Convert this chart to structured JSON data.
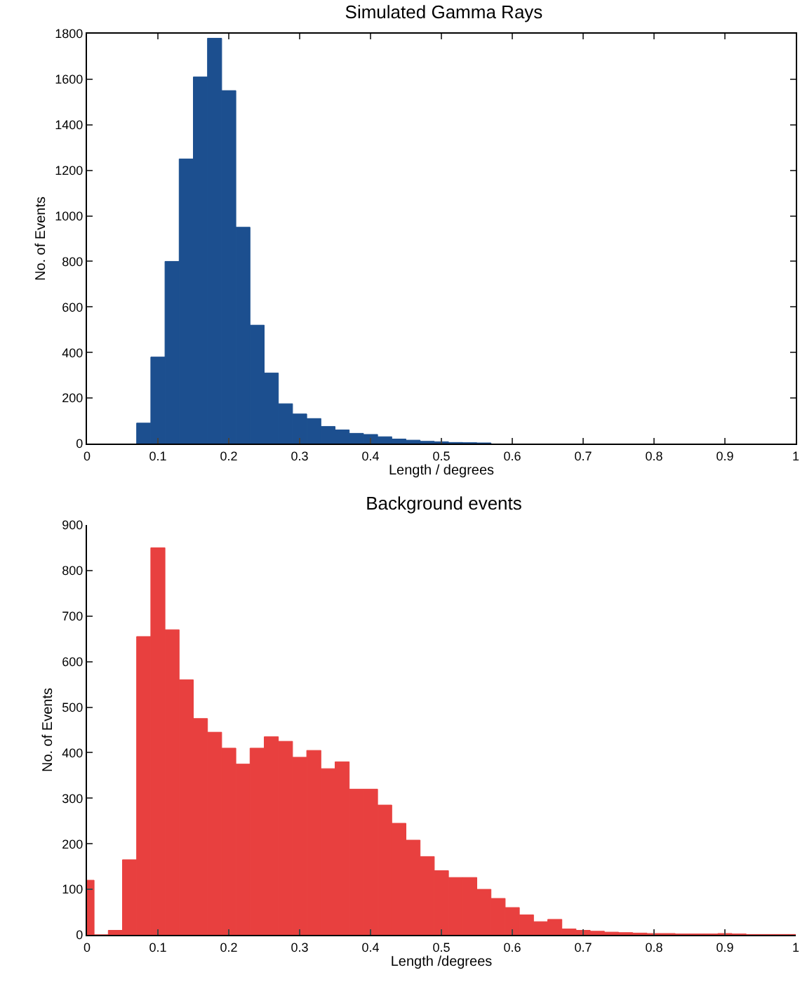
{
  "chart_data": [
    {
      "type": "histogram",
      "title": "Simulated Gamma Rays",
      "xlabel": "Length / degrees",
      "ylabel": "No. of Events",
      "color": "#1c4f8f",
      "bins": [
        0.07,
        0.09,
        0.11,
        0.13,
        0.15,
        0.17,
        0.19,
        0.21,
        0.23,
        0.25,
        0.27,
        0.29,
        0.31,
        0.33,
        0.35,
        0.37,
        0.39,
        0.41,
        0.43,
        0.45,
        0.47,
        0.49,
        0.51,
        0.53,
        0.55,
        0.57
      ],
      "values": [
        90,
        380,
        800,
        1250,
        1610,
        1780,
        1550,
        950,
        520,
        310,
        175,
        130,
        110,
        75,
        60,
        45,
        40,
        30,
        20,
        15,
        10,
        8,
        5,
        4,
        3
      ],
      "xlim": [
        0,
        1
      ],
      "xticks": [
        0,
        0.1,
        0.2,
        0.3,
        0.4,
        0.5,
        0.6,
        0.7,
        0.8,
        0.9,
        1
      ],
      "ylim": [
        0,
        1800
      ],
      "yticks": [
        0,
        200,
        400,
        600,
        800,
        1000,
        1200,
        1400,
        1600,
        1800
      ],
      "grid": false
    },
    {
      "type": "histogram",
      "title": "Background events",
      "xlabel": "Length /degrees",
      "ylabel": "No. of Events",
      "color": "#e8403f",
      "bins": [
        0,
        0.01,
        0.03,
        0.05,
        0.07,
        0.09,
        0.11,
        0.13,
        0.15,
        0.17,
        0.19,
        0.21,
        0.23,
        0.25,
        0.27,
        0.29,
        0.31,
        0.33,
        0.35,
        0.37,
        0.39,
        0.41,
        0.43,
        0.45,
        0.47,
        0.49,
        0.51,
        0.53,
        0.55,
        0.57,
        0.59,
        0.61,
        0.63,
        0.65,
        0.67,
        0.69,
        0.71,
        0.73,
        0.75,
        0.77,
        0.79,
        0.81,
        0.83,
        0.85,
        0.87,
        0.89,
        0.91,
        0.93,
        0.95,
        0.97,
        0.99,
        1
      ],
      "values": [
        120,
        0,
        10,
        165,
        655,
        850,
        670,
        560,
        475,
        445,
        410,
        375,
        410,
        435,
        425,
        390,
        405,
        365,
        380,
        320,
        320,
        285,
        245,
        208,
        172,
        141,
        126,
        126,
        100,
        80,
        60,
        44,
        29,
        34,
        13,
        10,
        8,
        6,
        5,
        4,
        3,
        3,
        2,
        2,
        2,
        3,
        2,
        1,
        1,
        1,
        1
      ],
      "xlim": [
        0,
        1
      ],
      "xticks": [
        0,
        0.1,
        0.2,
        0.3,
        0.4,
        0.5,
        0.6,
        0.7,
        0.8,
        0.9,
        1
      ],
      "ylim": [
        0,
        900
      ],
      "yticks": [
        0,
        100,
        200,
        300,
        400,
        500,
        600,
        700,
        800,
        900
      ],
      "grid": false
    }
  ]
}
